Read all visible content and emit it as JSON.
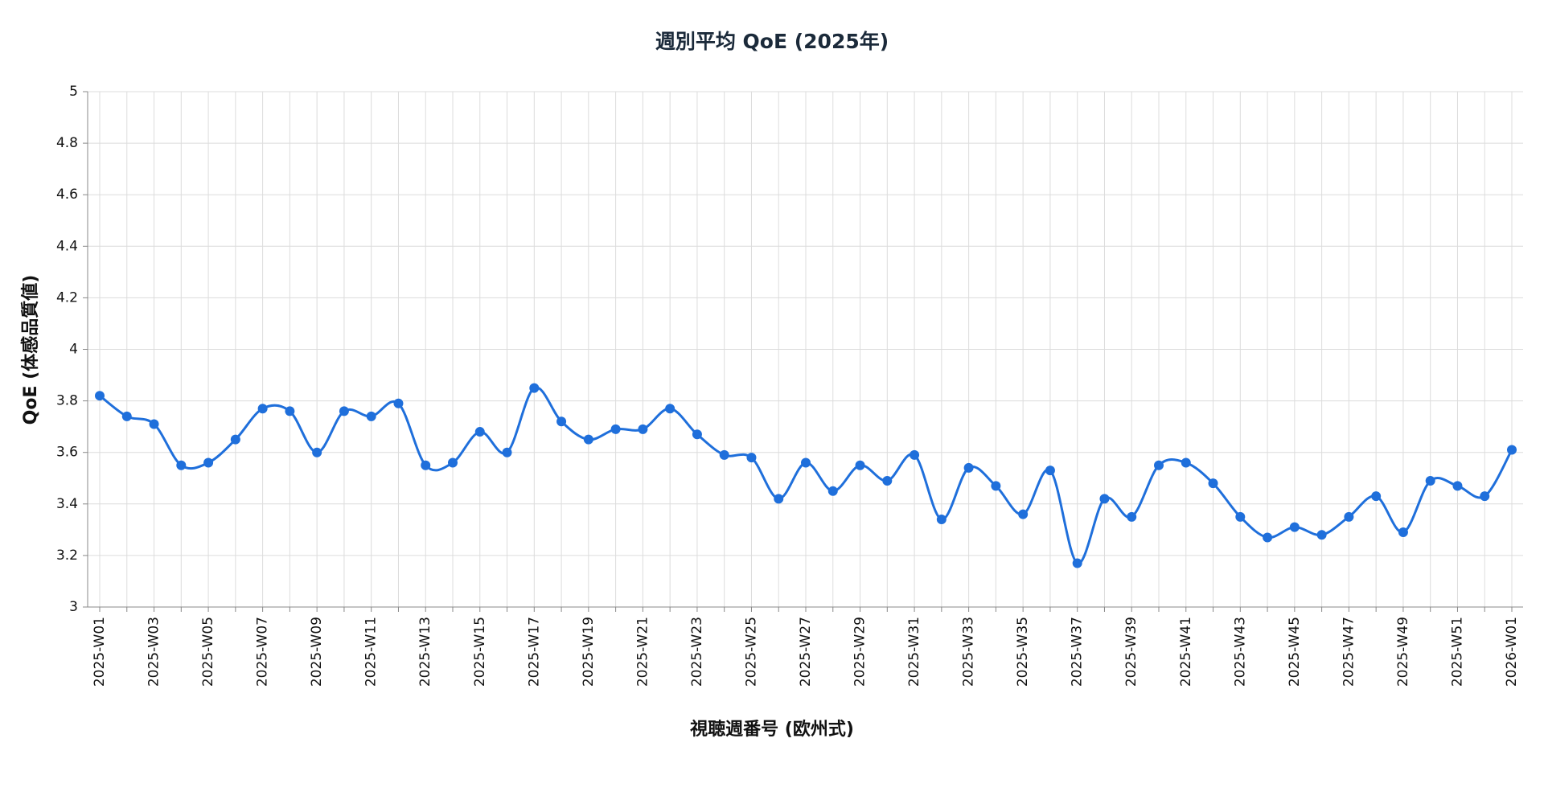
{
  "chart_data": {
    "type": "line",
    "title": "週別平均 QoE (2025年)",
    "x_label": "視聴週番号 (欧州式)",
    "y_label": "QoE (体感品質値)",
    "categories": [
      "2025-W01",
      null,
      "2025-W03",
      null,
      "2025-W05",
      null,
      "2025-W07",
      null,
      "2025-W09",
      null,
      "2025-W11",
      null,
      "2025-W13",
      null,
      "2025-W15",
      null,
      "2025-W17",
      null,
      "2025-W19",
      null,
      "2025-W21",
      null,
      "2025-W23",
      null,
      "2025-W25",
      null,
      "2025-W27",
      null,
      "2025-W29",
      null,
      "2025-W31",
      null,
      "2025-W33",
      null,
      "2025-W35",
      null,
      "2025-W37",
      null,
      "2025-W39",
      null,
      "2025-W41",
      null,
      "2025-W43",
      null,
      "2025-W45",
      null,
      "2025-W47",
      null,
      "2025-W49",
      null,
      "2025-W51",
      null,
      "2026-W01"
    ],
    "values": [
      3.82,
      3.74,
      3.71,
      3.55,
      3.56,
      3.65,
      3.77,
      3.76,
      3.6,
      3.76,
      3.74,
      3.79,
      3.55,
      3.56,
      3.68,
      3.6,
      3.85,
      3.72,
      3.65,
      3.69,
      3.69,
      3.77,
      3.67,
      3.59,
      3.58,
      3.42,
      3.56,
      3.45,
      3.55,
      3.49,
      3.59,
      3.34,
      3.54,
      3.47,
      3.36,
      3.53,
      3.17,
      3.42,
      3.35,
      3.55,
      3.56,
      3.48,
      3.35,
      3.27,
      3.31,
      3.28,
      3.35,
      3.43,
      3.29,
      3.49,
      3.47,
      3.43,
      3.61
    ],
    "color": "#1f6fdb",
    "ylim": [
      3,
      5
    ],
    "yticks": [
      3,
      3.2,
      3.4,
      3.6,
      3.8,
      4,
      4.2,
      4.4,
      4.6,
      4.8,
      5
    ],
    "grid": true
  }
}
